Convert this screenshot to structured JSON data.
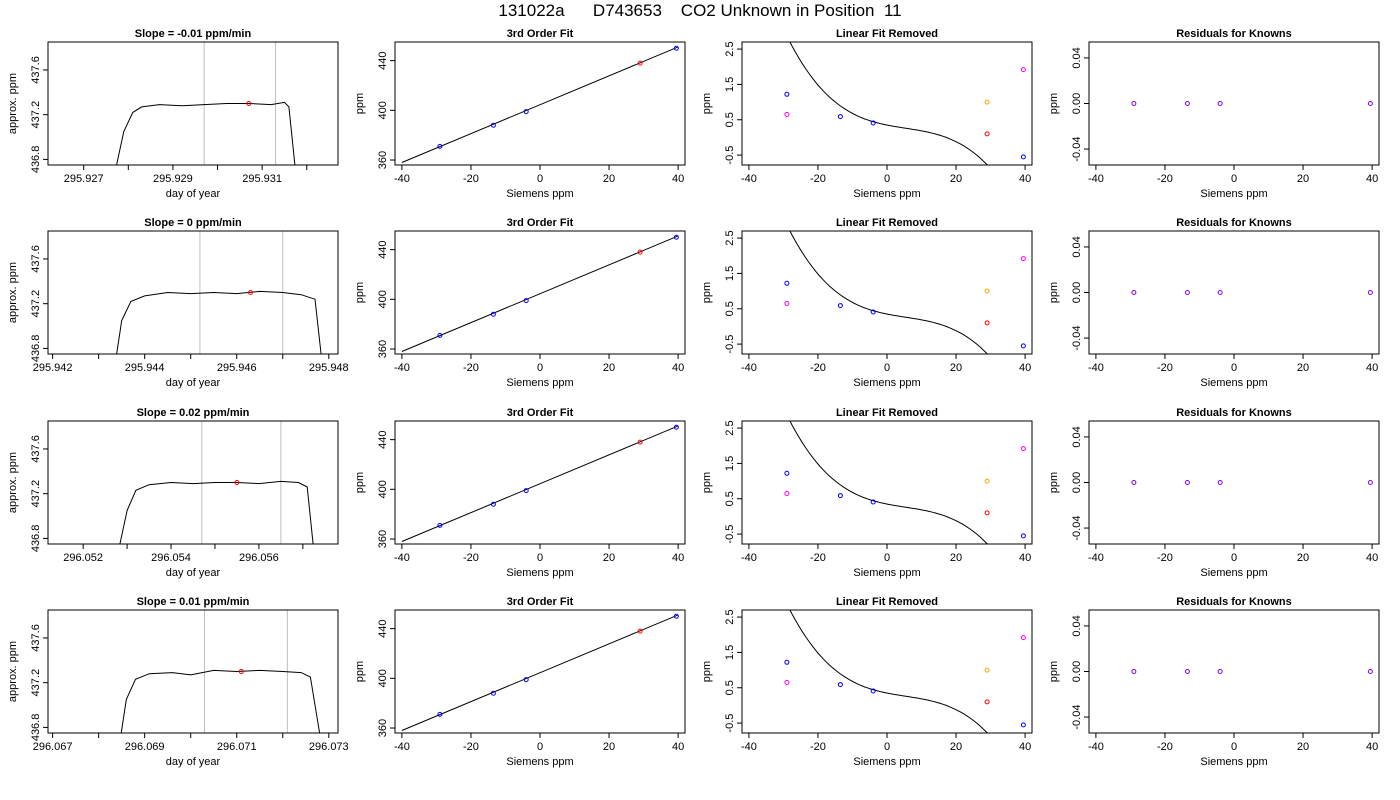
{
  "title": "131022a      D743653    CO2 Unknown in Position  11",
  "colors": {
    "line": "#000000",
    "grid_vline": "#bfbfbf",
    "known_point": "#0000ff",
    "unknown_point": "#ff0000",
    "orange_point": "#ffa500",
    "magenta_point": "#ff00ff",
    "purple_point": "#8000ff"
  },
  "chart_data": [
    {
      "type": "line",
      "row": 0,
      "col": 0,
      "title": "Slope =  -0.01  ppm/min",
      "xlabel": "day of year",
      "ylabel": "approx. ppm",
      "xlim": [
        295.9262,
        295.9327
      ],
      "ylim": [
        436.75,
        437.85
      ],
      "xticks": [
        295.927,
        295.928,
        295.929,
        295.93,
        295.931,
        295.932
      ],
      "xtick_labels": [
        "295.927",
        "",
        "295.929",
        "",
        "295.931",
        ""
      ],
      "yticks": [
        436.8,
        437.2,
        437.6
      ],
      "ytick_labels": [
        "436.8",
        "437.2",
        "437.6"
      ],
      "vlines": [
        295.9297,
        295.9313
      ],
      "marker": [
        295.9307,
        437.3
      ],
      "x": [
        295.9276,
        295.9279,
        295.9281,
        295.9283,
        295.9287,
        295.9292,
        295.9297,
        295.9302,
        295.9307,
        295.9312,
        295.9315,
        295.9316,
        295.9318
      ],
      "y": [
        436.5,
        437.05,
        437.22,
        437.27,
        437.29,
        437.28,
        437.29,
        437.3,
        437.3,
        437.29,
        437.31,
        437.27,
        436.5
      ]
    },
    {
      "type": "scatter",
      "row": 0,
      "col": 1,
      "title": "3rd Order Fit",
      "xlabel": "Siemens ppm",
      "ylabel": "ppm",
      "xlim": [
        -42,
        42
      ],
      "ylim": [
        356,
        455
      ],
      "xticks": [
        -40,
        -20,
        0,
        20,
        40
      ],
      "yticks": [
        360,
        400,
        440
      ],
      "line": {
        "x": [
          -40,
          40
        ],
        "y": [
          358,
          451
        ]
      },
      "points": [
        {
          "x": -29,
          "y": 371,
          "color": "known_point"
        },
        {
          "x": -13.5,
          "y": 388,
          "color": "known_point"
        },
        {
          "x": -4,
          "y": 399,
          "color": "known_point"
        },
        {
          "x": 29,
          "y": 438,
          "color": "unknown_point"
        },
        {
          "x": 39.5,
          "y": 450,
          "color": "known_point"
        }
      ]
    },
    {
      "type": "scatter",
      "row": 0,
      "col": 2,
      "title": "Linear Fit Removed",
      "xlabel": "Siemens ppm",
      "ylabel": "ppm",
      "xlim": [
        -42,
        42
      ],
      "ylim": [
        -0.78,
        2.7
      ],
      "xticks": [
        -40,
        -20,
        0,
        20,
        40
      ],
      "yticks": [
        -0.5,
        0.5,
        1.5,
        2.5
      ],
      "curve_coeffs": [
        0.35,
        -0.0195,
        0.00083,
        -5.15e-05
      ],
      "curve_xrange": [
        -39.5,
        40
      ],
      "points": [
        {
          "x": -29,
          "y": 1.22,
          "color": "known_point"
        },
        {
          "x": -29,
          "y": 0.65,
          "color": "magenta_point"
        },
        {
          "x": -13.5,
          "y": 0.59,
          "color": "known_point"
        },
        {
          "x": -4,
          "y": 0.41,
          "color": "known_point"
        },
        {
          "x": 29,
          "y": 1.0,
          "color": "orange_point"
        },
        {
          "x": 29,
          "y": 0.1,
          "color": "unknown_point"
        },
        {
          "x": 39.5,
          "y": 1.92,
          "color": "magenta_point"
        },
        {
          "x": 39.5,
          "y": -0.55,
          "color": "known_point"
        }
      ]
    },
    {
      "type": "scatter",
      "row": 0,
      "col": 3,
      "title": "Residuals for Knowns",
      "xlabel": "Siemens ppm",
      "ylabel": "ppm",
      "xlim": [
        -42,
        42
      ],
      "ylim": [
        -0.054,
        0.054
      ],
      "xticks": [
        -40,
        -20,
        0,
        20,
        40
      ],
      "yticks": [
        -0.04,
        0.0,
        0.04
      ],
      "ytick_labels": [
        "-0.04",
        "0.00",
        "0.04"
      ],
      "points": [
        {
          "x": -29,
          "y": 0,
          "color": "purple_point"
        },
        {
          "x": -13.5,
          "y": 0,
          "color": "purple_point"
        },
        {
          "x": -4,
          "y": 0,
          "color": "purple_point"
        },
        {
          "x": 39.5,
          "y": 0,
          "color": "purple_point"
        }
      ]
    },
    {
      "type": "line",
      "row": 1,
      "col": 0,
      "title": "Slope =  0  ppm/min",
      "xlabel": "day of year",
      "ylabel": "approx. ppm",
      "xlim": [
        295.9419,
        295.9482
      ],
      "ylim": [
        436.75,
        437.85
      ],
      "xticks": [
        295.942,
        295.943,
        295.944,
        295.945,
        295.946,
        295.947,
        295.948
      ],
      "xtick_labels": [
        "295.942",
        "",
        "295.944",
        "",
        "295.946",
        "",
        "295.948"
      ],
      "yticks": [
        436.8,
        437.2,
        437.6
      ],
      "ytick_labels": [
        "436.8",
        "437.2",
        "437.6"
      ],
      "vlines": [
        295.9452,
        295.947
      ],
      "marker": [
        295.9463,
        437.3
      ],
      "x": [
        295.9433,
        295.9435,
        295.9437,
        295.944,
        295.9445,
        295.945,
        295.9455,
        295.946,
        295.9465,
        295.947,
        295.9474,
        295.9477,
        295.9479
      ],
      "y": [
        436.5,
        437.05,
        437.22,
        437.27,
        437.3,
        437.29,
        437.3,
        437.29,
        437.31,
        437.3,
        437.28,
        437.24,
        436.5
      ]
    },
    {
      "type": "scatter",
      "row": 1,
      "col": 1,
      "title": "3rd Order Fit",
      "xlabel": "Siemens ppm",
      "ylabel": "ppm",
      "xlim": [
        -42,
        42
      ],
      "ylim": [
        356,
        455
      ],
      "xticks": [
        -40,
        -20,
        0,
        20,
        40
      ],
      "yticks": [
        360,
        400,
        440
      ],
      "line": {
        "x": [
          -40,
          40
        ],
        "y": [
          358,
          451
        ]
      },
      "points": [
        {
          "x": -29,
          "y": 371,
          "color": "known_point"
        },
        {
          "x": -13.5,
          "y": 388,
          "color": "known_point"
        },
        {
          "x": -4,
          "y": 399,
          "color": "known_point"
        },
        {
          "x": 29,
          "y": 438,
          "color": "unknown_point"
        },
        {
          "x": 39.5,
          "y": 450,
          "color": "known_point"
        }
      ]
    },
    {
      "type": "scatter",
      "row": 1,
      "col": 2,
      "title": "Linear Fit Removed",
      "xlabel": "Siemens ppm",
      "ylabel": "ppm",
      "xlim": [
        -42,
        42
      ],
      "ylim": [
        -0.78,
        2.7
      ],
      "xticks": [
        -40,
        -20,
        0,
        20,
        40
      ],
      "yticks": [
        -0.5,
        0.5,
        1.5,
        2.5
      ],
      "curve_coeffs": [
        0.35,
        -0.0195,
        0.00083,
        -5.15e-05
      ],
      "curve_xrange": [
        -39.5,
        40
      ],
      "points": [
        {
          "x": -29,
          "y": 1.22,
          "color": "known_point"
        },
        {
          "x": -29,
          "y": 0.65,
          "color": "magenta_point"
        },
        {
          "x": -13.5,
          "y": 0.59,
          "color": "known_point"
        },
        {
          "x": -4,
          "y": 0.41,
          "color": "known_point"
        },
        {
          "x": 29,
          "y": 1.0,
          "color": "orange_point"
        },
        {
          "x": 29,
          "y": 0.1,
          "color": "unknown_point"
        },
        {
          "x": 39.5,
          "y": 1.92,
          "color": "magenta_point"
        },
        {
          "x": 39.5,
          "y": -0.55,
          "color": "known_point"
        }
      ]
    },
    {
      "type": "scatter",
      "row": 1,
      "col": 3,
      "title": "Residuals for Knowns",
      "xlabel": "Siemens ppm",
      "ylabel": "ppm",
      "xlim": [
        -42,
        42
      ],
      "ylim": [
        -0.054,
        0.054
      ],
      "xticks": [
        -40,
        -20,
        0,
        20,
        40
      ],
      "yticks": [
        -0.04,
        0.0,
        0.04
      ],
      "ytick_labels": [
        "-0.04",
        "0.00",
        "0.04"
      ],
      "points": [
        {
          "x": -29,
          "y": 0,
          "color": "purple_point"
        },
        {
          "x": -13.5,
          "y": 0,
          "color": "purple_point"
        },
        {
          "x": -4,
          "y": 0,
          "color": "purple_point"
        },
        {
          "x": 39.5,
          "y": 0,
          "color": "purple_point"
        }
      ]
    },
    {
      "type": "line",
      "row": 2,
      "col": 0,
      "title": "Slope =  0.02  ppm/min",
      "xlabel": "day of year",
      "ylabel": "approx. ppm",
      "xlim": [
        296.0512,
        296.0578
      ],
      "ylim": [
        436.75,
        437.85
      ],
      "xticks": [
        296.052,
        296.053,
        296.054,
        296.055,
        296.056,
        296.057
      ],
      "xtick_labels": [
        "296.052",
        "",
        "296.054",
        "",
        "296.056",
        ""
      ],
      "yticks": [
        436.8,
        437.2,
        437.6
      ],
      "ytick_labels": [
        "436.8",
        "437.2",
        "437.6"
      ],
      "vlines": [
        296.0547,
        296.0565
      ],
      "marker": [
        296.0555,
        437.3
      ],
      "x": [
        296.0527,
        296.053,
        296.0532,
        296.0535,
        296.054,
        296.0545,
        296.055,
        296.0555,
        296.056,
        296.0565,
        296.0569,
        296.0571,
        296.0573
      ],
      "y": [
        436.5,
        437.05,
        437.23,
        437.28,
        437.3,
        437.29,
        437.3,
        437.3,
        437.29,
        437.31,
        437.3,
        437.26,
        436.5
      ]
    },
    {
      "type": "scatter",
      "row": 2,
      "col": 1,
      "title": "3rd Order Fit",
      "xlabel": "Siemens ppm",
      "ylabel": "ppm",
      "xlim": [
        -42,
        42
      ],
      "ylim": [
        356,
        455
      ],
      "xticks": [
        -40,
        -20,
        0,
        20,
        40
      ],
      "yticks": [
        360,
        400,
        440
      ],
      "line": {
        "x": [
          -40,
          40
        ],
        "y": [
          358,
          451
        ]
      },
      "points": [
        {
          "x": -29,
          "y": 371,
          "color": "known_point"
        },
        {
          "x": -13.5,
          "y": 388,
          "color": "known_point"
        },
        {
          "x": -4,
          "y": 399,
          "color": "known_point"
        },
        {
          "x": 29,
          "y": 438,
          "color": "unknown_point"
        },
        {
          "x": 39.5,
          "y": 450,
          "color": "known_point"
        }
      ]
    },
    {
      "type": "scatter",
      "row": 2,
      "col": 2,
      "title": "Linear Fit Removed",
      "xlabel": "Siemens ppm",
      "ylabel": "ppm",
      "xlim": [
        -42,
        42
      ],
      "ylim": [
        -0.78,
        2.7
      ],
      "xticks": [
        -40,
        -20,
        0,
        20,
        40
      ],
      "yticks": [
        -0.5,
        0.5,
        1.5,
        2.5
      ],
      "curve_coeffs": [
        0.35,
        -0.0195,
        0.00083,
        -5.15e-05
      ],
      "curve_xrange": [
        -39.5,
        40
      ],
      "points": [
        {
          "x": -29,
          "y": 1.22,
          "color": "known_point"
        },
        {
          "x": -29,
          "y": 0.65,
          "color": "magenta_point"
        },
        {
          "x": -13.5,
          "y": 0.59,
          "color": "known_point"
        },
        {
          "x": -4,
          "y": 0.41,
          "color": "known_point"
        },
        {
          "x": 29,
          "y": 1.0,
          "color": "orange_point"
        },
        {
          "x": 29,
          "y": 0.1,
          "color": "unknown_point"
        },
        {
          "x": 39.5,
          "y": 1.92,
          "color": "magenta_point"
        },
        {
          "x": 39.5,
          "y": -0.55,
          "color": "known_point"
        }
      ]
    },
    {
      "type": "scatter",
      "row": 2,
      "col": 3,
      "title": "Residuals for Knowns",
      "xlabel": "Siemens ppm",
      "ylabel": "ppm",
      "xlim": [
        -42,
        42
      ],
      "ylim": [
        -0.054,
        0.054
      ],
      "xticks": [
        -40,
        -20,
        0,
        20,
        40
      ],
      "yticks": [
        -0.04,
        0.0,
        0.04
      ],
      "ytick_labels": [
        "-0.04",
        "0.00",
        "0.04"
      ],
      "points": [
        {
          "x": -29,
          "y": 0,
          "color": "purple_point"
        },
        {
          "x": -13.5,
          "y": 0,
          "color": "purple_point"
        },
        {
          "x": -4,
          "y": 0,
          "color": "purple_point"
        },
        {
          "x": 39.5,
          "y": 0,
          "color": "purple_point"
        }
      ]
    },
    {
      "type": "line",
      "row": 3,
      "col": 0,
      "title": "Slope =  0.01  ppm/min",
      "xlabel": "day of year",
      "ylabel": "approx. ppm",
      "xlim": [
        296.0669,
        296.0732
      ],
      "ylim": [
        436.75,
        437.85
      ],
      "xticks": [
        296.067,
        296.068,
        296.069,
        296.07,
        296.071,
        296.072,
        296.073
      ],
      "xtick_labels": [
        "296.067",
        "",
        "296.069",
        "",
        "296.071",
        "",
        "296.073"
      ],
      "yticks": [
        436.8,
        437.2,
        437.6
      ],
      "ytick_labels": [
        "436.8",
        "437.2",
        "437.6"
      ],
      "vlines": [
        296.0703,
        296.0721
      ],
      "marker": [
        296.0711,
        437.3
      ],
      "x": [
        296.0684,
        296.0686,
        296.0688,
        296.0691,
        296.0696,
        296.07,
        296.0705,
        296.071,
        296.0715,
        296.072,
        296.0724,
        296.0726,
        296.0729
      ],
      "y": [
        436.5,
        437.05,
        437.23,
        437.28,
        437.29,
        437.27,
        437.31,
        437.3,
        437.31,
        437.3,
        437.29,
        437.25,
        436.5
      ]
    },
    {
      "type": "scatter",
      "row": 3,
      "col": 1,
      "title": "3rd Order Fit",
      "xlabel": "Siemens ppm",
      "ylabel": "ppm",
      "xlim": [
        -42,
        42
      ],
      "ylim": [
        356,
        455
      ],
      "xticks": [
        -40,
        -20,
        0,
        20,
        40
      ],
      "yticks": [
        360,
        400,
        440
      ],
      "line": {
        "x": [
          -40,
          40
        ],
        "y": [
          358,
          451
        ]
      },
      "points": [
        {
          "x": -29,
          "y": 371,
          "color": "known_point"
        },
        {
          "x": -13.5,
          "y": 388,
          "color": "known_point"
        },
        {
          "x": -4,
          "y": 399,
          "color": "known_point"
        },
        {
          "x": 29,
          "y": 438,
          "color": "unknown_point"
        },
        {
          "x": 39.5,
          "y": 450,
          "color": "known_point"
        }
      ]
    },
    {
      "type": "scatter",
      "row": 3,
      "col": 2,
      "title": "Linear Fit Removed",
      "xlabel": "Siemens ppm",
      "ylabel": "ppm",
      "xlim": [
        -42,
        42
      ],
      "ylim": [
        -0.78,
        2.7
      ],
      "xticks": [
        -40,
        -20,
        0,
        20,
        40
      ],
      "yticks": [
        -0.5,
        0.5,
        1.5,
        2.5
      ],
      "curve_coeffs": [
        0.35,
        -0.0195,
        0.00083,
        -5.15e-05
      ],
      "curve_xrange": [
        -39.5,
        40
      ],
      "points": [
        {
          "x": -29,
          "y": 1.22,
          "color": "known_point"
        },
        {
          "x": -29,
          "y": 0.65,
          "color": "magenta_point"
        },
        {
          "x": -13.5,
          "y": 0.59,
          "color": "known_point"
        },
        {
          "x": -4,
          "y": 0.41,
          "color": "known_point"
        },
        {
          "x": 29,
          "y": 1.0,
          "color": "orange_point"
        },
        {
          "x": 29,
          "y": 0.1,
          "color": "unknown_point"
        },
        {
          "x": 39.5,
          "y": 1.92,
          "color": "magenta_point"
        },
        {
          "x": 39.5,
          "y": -0.55,
          "color": "known_point"
        }
      ]
    },
    {
      "type": "scatter",
      "row": 3,
      "col": 3,
      "title": "Residuals for Knowns",
      "xlabel": "Siemens ppm",
      "ylabel": "ppm",
      "xlim": [
        -42,
        42
      ],
      "ylim": [
        -0.054,
        0.054
      ],
      "xticks": [
        -40,
        -20,
        0,
        20,
        40
      ],
      "yticks": [
        -0.04,
        0.0,
        0.04
      ],
      "ytick_labels": [
        "-0.04",
        "0.00",
        "0.04"
      ],
      "points": [
        {
          "x": -29,
          "y": 0,
          "color": "purple_point"
        },
        {
          "x": -13.5,
          "y": 0,
          "color": "purple_point"
        },
        {
          "x": -4,
          "y": 0,
          "color": "purple_point"
        },
        {
          "x": 39.5,
          "y": 0,
          "color": "purple_point"
        }
      ]
    }
  ]
}
